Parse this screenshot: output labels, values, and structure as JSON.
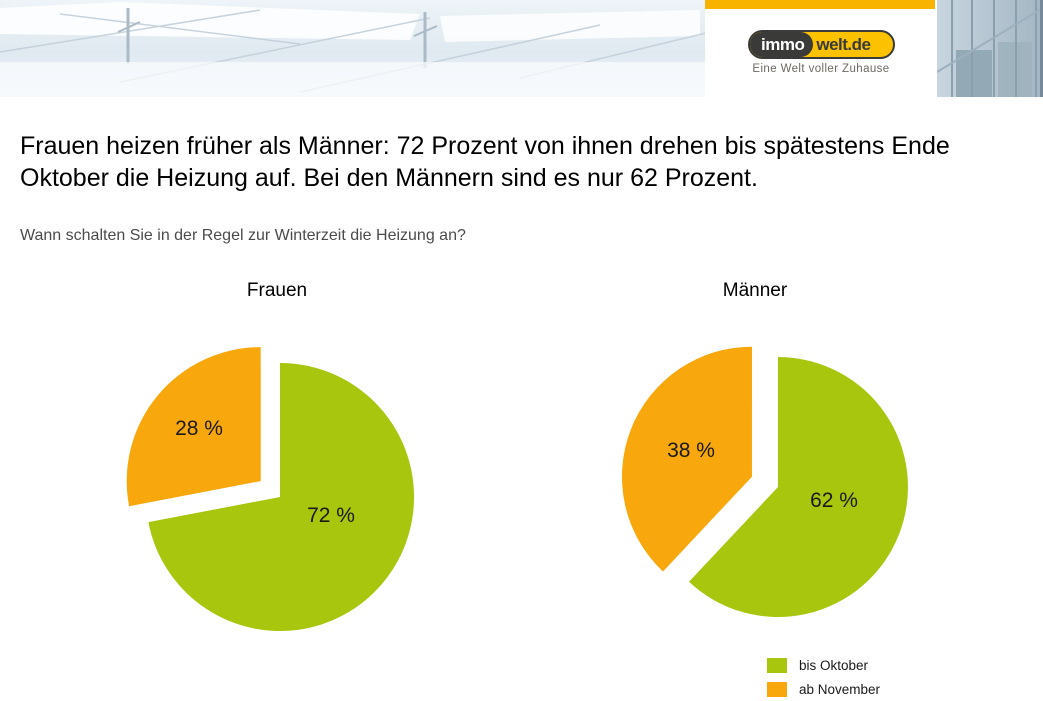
{
  "header": {
    "logo": {
      "part1": "immo",
      "part2": "welt.de",
      "tagline": "Eine Welt voller Zuhause",
      "colors": {
        "topbar_yellow": "#F8B200",
        "pill_yellow": "#FCC200",
        "pill_dark": "#3A3A39"
      }
    }
  },
  "headline": {
    "line1": "Frauen heizen früher als Männer: 72 Prozent von ihnen drehen bis spätestens Ende",
    "line2": "Oktober die Heizung auf. Bei den Männern sind es nur 62 Prozent."
  },
  "question": "Wann schalten Sie in der Regel zur Winterzeit die Heizung an?",
  "chart_data": [
    {
      "type": "pie",
      "title": "Frauen",
      "labels": [
        "bis Oktober",
        "ab November"
      ],
      "values": [
        72,
        28
      ],
      "unit": "%",
      "colors": [
        "#A7C60D",
        "#F8A80C"
      ],
      "exploded_slice": "ab November",
      "label_format": "{value} %",
      "start_angle": "top",
      "direction": "clockwise"
    },
    {
      "type": "pie",
      "title": "Männer",
      "labels": [
        "bis Oktober",
        "ab November"
      ],
      "values": [
        62,
        38
      ],
      "unit": "%",
      "colors": [
        "#A7C60D",
        "#F8A80C"
      ],
      "exploded_slice": "ab November",
      "label_format": "{value} %",
      "start_angle": "top",
      "direction": "clockwise"
    }
  ],
  "legend": {
    "position": "bottom-right",
    "items": [
      {
        "label": "bis Oktober",
        "color": "#A7C60D"
      },
      {
        "label": "ab November",
        "color": "#F8A80C"
      }
    ]
  }
}
